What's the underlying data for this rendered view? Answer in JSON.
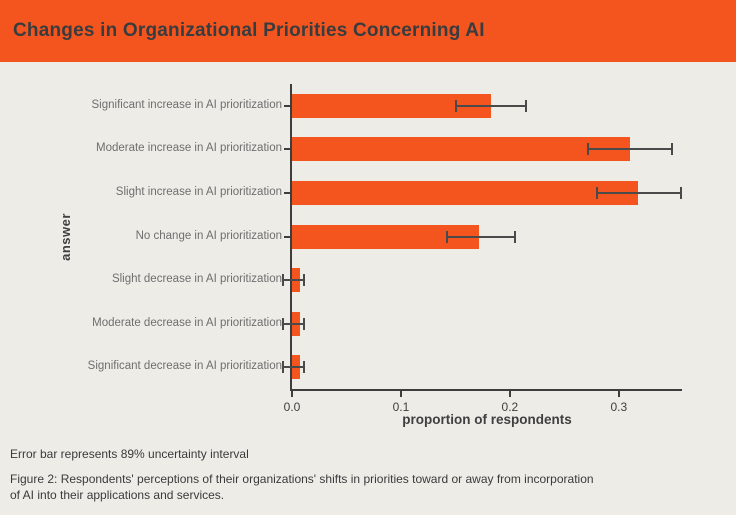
{
  "header": {
    "title": "Changes in Organizational Priorities Concerning AI"
  },
  "chart_data": {
    "type": "bar",
    "orientation": "horizontal",
    "xlabel": "proportion of respondents",
    "ylabel": "answer",
    "xlim": [
      0,
      0.358
    ],
    "xticks": [
      0,
      0.1,
      0.2,
      0.3
    ],
    "xtick_labels": [
      "0.0",
      "0.1",
      "0.2",
      "0.3"
    ],
    "grid": false,
    "legend": false,
    "categories": [
      "Significant increase in AI prioritization",
      "Moderate increase in AI prioritization",
      "Slight increase in AI prioritization",
      "No change in AI prioritization",
      "Slight decrease in AI prioritization",
      "Moderate decrease in AI prioritization",
      "Significant decrease in AI prioritization"
    ],
    "values": [
      0.183,
      0.31,
      0.318,
      0.172,
      0.007,
      0.007,
      0.007
    ],
    "error_low": [
      0.151,
      0.272,
      0.28,
      0.142,
      -0.008,
      -0.008,
      -0.008
    ],
    "error_high": [
      0.215,
      0.349,
      0.357,
      0.205,
      0.011,
      0.011,
      0.011
    ],
    "error_note_semantics": "89% uncertainty interval"
  },
  "colors": {
    "accent_orange": "#F4551E",
    "background": "#EEECE7",
    "axis": "#3D3D3D",
    "error_bar": "#4A4A4A",
    "category_label": "#6E6E6E",
    "title_text": "#393C3E"
  },
  "footnotes": {
    "error_note": "Error bar represents 89% uncertainty interval",
    "figure_caption": "Figure 2: Respondents' perceptions of their organizations' shifts in priorities toward or away from incorporation of AI into their applications and services."
  }
}
